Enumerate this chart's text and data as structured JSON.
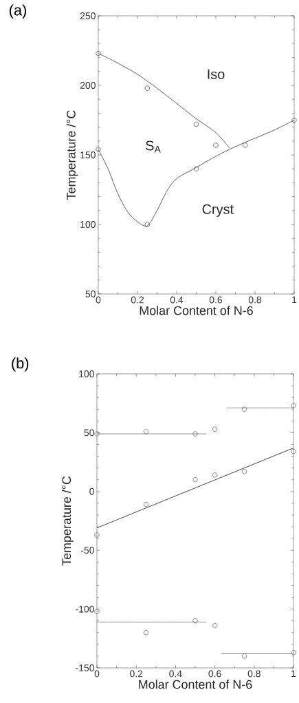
{
  "chart_data": [
    {
      "type": "scatter",
      "title": "(a)",
      "xlabel": "Molar Content of N-6",
      "ylabel": "Temperature  /°C",
      "xlim": [
        0,
        1
      ],
      "ylim": [
        50,
        250
      ],
      "xticks": [
        0,
        0.2,
        0.4,
        0.6,
        0.8,
        1
      ],
      "yticks": [
        50,
        100,
        150,
        200,
        250
      ],
      "annotations": [
        "Iso",
        "S$_{A}$",
        "Cryst"
      ],
      "series": [
        {
          "type": "line",
          "color": "#333333",
          "marker": "none",
          "x": [
            0,
            0.1,
            0.2,
            0.25,
            0.3,
            0.4,
            0.5,
            0.6,
            0.67
          ],
          "values": [
            223,
            216,
            208,
            203,
            198,
            187,
            176,
            166,
            155
          ]
        },
        {
          "type": "line",
          "color": "#333333",
          "marker": "none",
          "x": [
            0,
            0.05,
            0.1,
            0.15,
            0.2,
            0.25,
            0.3,
            0.35,
            0.4,
            0.5,
            0.6,
            0.7,
            0.8,
            0.9,
            1
          ],
          "values": [
            154,
            140,
            122,
            109,
            102,
            99,
            110,
            124,
            133,
            141,
            149,
            156,
            162,
            168,
            175
          ]
        },
        {
          "type": "scatter",
          "color": "#333333",
          "marker": "circle",
          "x": [
            0,
            0.25,
            0.5,
            0.6,
            0,
            0.25,
            0.5,
            0.75,
            1
          ],
          "values": [
            223,
            198,
            172,
            157,
            154,
            100,
            140,
            157,
            175
          ]
        }
      ]
    },
    {
      "type": "scatter",
      "title": "(b)",
      "xlabel": "Molar Content of N-6",
      "ylabel": "Temperature  /°C",
      "xlim": [
        0,
        1
      ],
      "ylim": [
        -150,
        100
      ],
      "xticks": [
        0,
        0.2,
        0.4,
        0.6,
        0.8,
        1
      ],
      "yticks": [
        -150,
        -100,
        -50,
        0,
        50,
        100
      ],
      "series": [
        {
          "type": "line",
          "color": "#111111",
          "marker": "none",
          "x": [
            0,
            1
          ],
          "values": [
            -31,
            37
          ]
        },
        {
          "type": "line",
          "color": "#666666",
          "marker": "none",
          "x": [
            0,
            0.557
          ],
          "values": [
            49,
            49
          ]
        },
        {
          "type": "line",
          "color": "#666666",
          "marker": "none",
          "x": [
            0.658,
            1
          ],
          "values": [
            71,
            71
          ]
        },
        {
          "type": "line",
          "color": "#666666",
          "marker": "none",
          "x": [
            0,
            0.557
          ],
          "values": [
            -111,
            -111
          ]
        },
        {
          "type": "line",
          "color": "#666666",
          "marker": "none",
          "x": [
            0.634,
            1
          ],
          "values": [
            -138,
            -138
          ]
        },
        {
          "type": "scatter",
          "color": "#555555",
          "marker": "circle",
          "x": [
            0,
            0.25,
            0.5,
            0.6,
            0.75,
            1,
            1,
            0.75,
            0.6,
            0.5,
            0.25,
            0,
            0,
            0.5,
            0.6,
            0.25,
            0.75,
            1
          ],
          "values": [
            49,
            51,
            49,
            53,
            70,
            73,
            34,
            17,
            14,
            10,
            -11,
            -37,
            -102,
            -110,
            -114,
            -120,
            -140,
            -137
          ]
        }
      ]
    }
  ]
}
